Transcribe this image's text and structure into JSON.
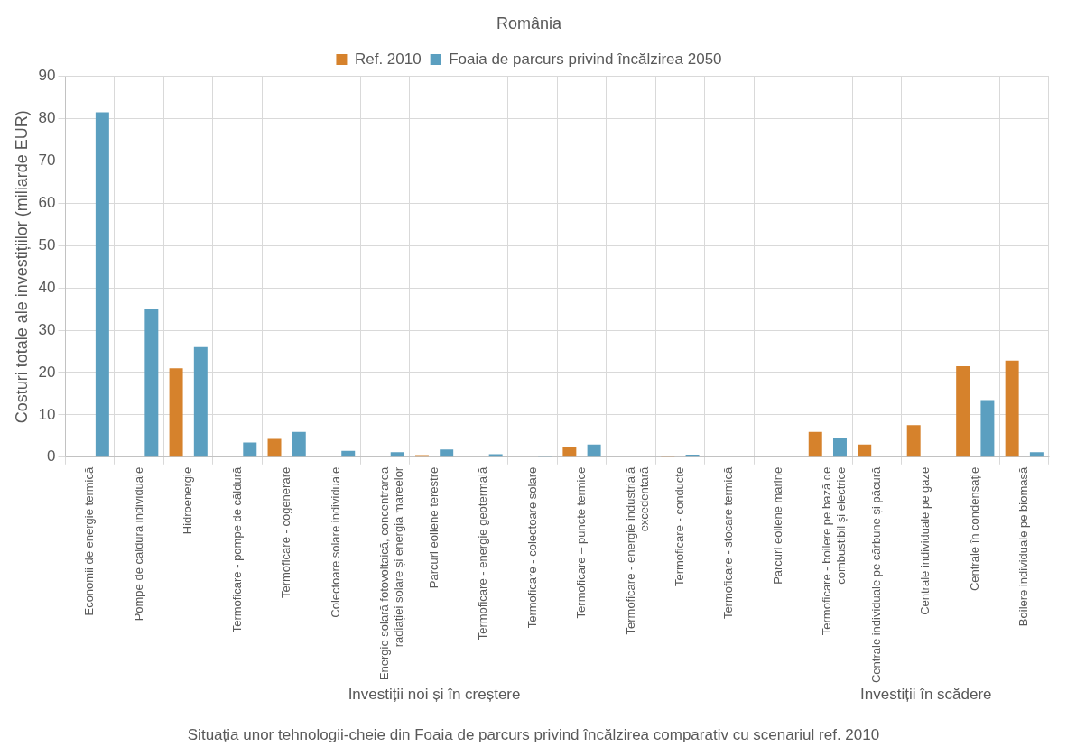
{
  "chart_data": {
    "type": "bar",
    "title": "România",
    "xlabel": "Situația unor tehnologii-cheie din Foaia de parcurs privind încălzirea comparativ cu scenariul ref. 2010",
    "ylabel": "Costuri totale ale investițiilor (miliarde EUR)",
    "categories": [
      "Economii de energie termică",
      "Pompe de căldură individuale",
      "Hidroenergie",
      "Termoficare - pompe de căldură",
      "Termoficare - cogenerare",
      "Colectoare solare individuale",
      "Energie solară fotovoltaică, concentrarea radiației solare și energia mareelor",
      "Parcuri eoliene terestre",
      "Termoficare - energie geotermală",
      "Termoficare - colectoare solare",
      "Termoficare – puncte termice",
      "Termoficare - energie industrială excedentară",
      "Termoficare - conducte",
      "Termoficare - stocare termică",
      "Parcuri eoliene marine",
      "Termoficare - boilere pe bază de combustibil și electrice",
      "Centrale individuale pe cărbune și păcură",
      "Centrale individuale pe gaze",
      "Centrale în condensație",
      "Boilere individuale pe biomasă"
    ],
    "series": [
      {
        "name": "Ref. 2010",
        "color": "#d6822c",
        "values": [
          0,
          0,
          21,
          0,
          4.3,
          0,
          0,
          0.5,
          0,
          0,
          2.5,
          0,
          0.3,
          0,
          0,
          6,
          3,
          7.6,
          21.5,
          22.8
        ]
      },
      {
        "name": "Foaia de parcurs privind încălzirea 2050",
        "color": "#5b9fc0",
        "values": [
          81.5,
          35,
          26,
          3.5,
          6,
          1.5,
          1.2,
          1.8,
          0.7,
          0.3,
          3,
          0,
          0.6,
          0,
          0,
          4.5,
          0,
          0,
          13.5,
          1.2
        ]
      }
    ],
    "annotations": [
      "Investiții noi și în creștere",
      "Investiții în scădere"
    ],
    "ylim": [
      0,
      90
    ],
    "yticks": [
      0,
      10,
      20,
      30,
      40,
      50,
      60,
      70,
      80,
      90
    ],
    "grid": true,
    "legend": "top"
  }
}
